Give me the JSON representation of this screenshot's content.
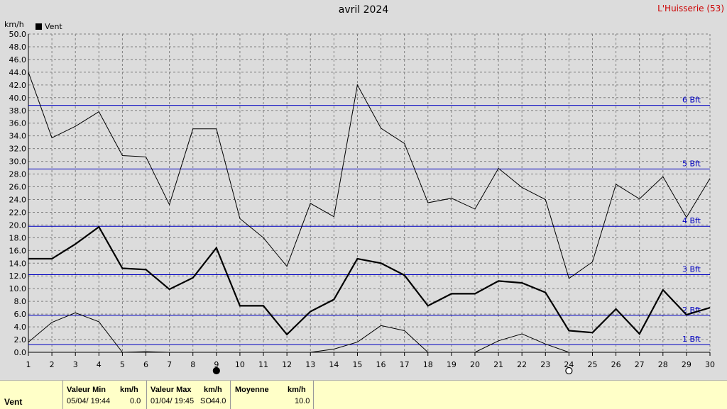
{
  "header": {
    "title": "avril 2024",
    "station": "L'Huisserie (53)",
    "unit": "km/h",
    "legend_label": "Vent"
  },
  "chart_data": {
    "type": "line",
    "title": "avril 2024",
    "ylabel": "km/h",
    "x": [
      1,
      2,
      3,
      4,
      5,
      6,
      7,
      8,
      9,
      10,
      11,
      12,
      13,
      14,
      15,
      16,
      17,
      18,
      19,
      20,
      21,
      22,
      23,
      24,
      25,
      26,
      27,
      28,
      29,
      30
    ],
    "xlim": [
      1,
      30
    ],
    "ylim": [
      0,
      50
    ],
    "y_ticks": [
      "0.0",
      "2.0",
      "4.0",
      "6.0",
      "8.0",
      "10.0",
      "12.0",
      "14.0",
      "16.0",
      "18.0",
      "20.0",
      "22.0",
      "24.0",
      "26.0",
      "28.0",
      "30.0",
      "32.0",
      "34.0",
      "36.0",
      "38.0",
      "40.0",
      "42.0",
      "44.0",
      "46.0",
      "48.0",
      "50.0"
    ],
    "grid": true,
    "legend": "top-left",
    "series": [
      {
        "name": "Vent",
        "role": "mean",
        "values": [
          14.7,
          14.7,
          17.0,
          19.7,
          13.2,
          13.0,
          9.9,
          11.7,
          16.4,
          7.3,
          7.3,
          2.8,
          6.4,
          8.3,
          14.7,
          14.0,
          12.1,
          7.3,
          9.2,
          9.2,
          11.2,
          10.9,
          9.4,
          3.4,
          3.1,
          6.8,
          2.9,
          9.8,
          5.9,
          7.0
        ]
      },
      {
        "role": "max",
        "values": [
          44.0,
          33.7,
          35.5,
          37.8,
          30.9,
          30.7,
          23.2,
          35.1,
          35.1,
          21.0,
          18.0,
          13.5,
          23.4,
          21.3,
          42.0,
          35.2,
          32.8,
          23.5,
          24.2,
          22.5,
          28.9,
          25.9,
          24.0,
          11.6,
          14.2,
          26.4,
          24.1,
          27.6,
          21.2,
          27.3
        ]
      },
      {
        "role": "min",
        "values": [
          1.6,
          4.7,
          6.2,
          4.8,
          0.0,
          0.1,
          0.0,
          null,
          null,
          null,
          null,
          null,
          0.0,
          0.5,
          1.6,
          4.2,
          3.4,
          0.0,
          null,
          0.0,
          1.8,
          2.9,
          1.3,
          0.0,
          null,
          null,
          null,
          null,
          null,
          null
        ]
      }
    ],
    "reference_lines": [
      {
        "value": 1.2,
        "label": "1 Bft"
      },
      {
        "value": 5.8,
        "label": "2 Bft"
      },
      {
        "value": 12.2,
        "label": "3 Bft"
      },
      {
        "value": 19.8,
        "label": "4 Bft"
      },
      {
        "value": 28.8,
        "label": "5 Bft"
      },
      {
        "value": 38.8,
        "label": "6 Bft"
      }
    ],
    "markers": [
      {
        "x": 9,
        "symbol": "filled-circle"
      },
      {
        "x": 24,
        "symbol": "open-circle"
      }
    ],
    "colors": {
      "grid": "#808080",
      "reference": "#0000c0",
      "series": "#000000",
      "background": "#dcdcdc"
    }
  },
  "footer": {
    "label": "Vent",
    "min": {
      "header": "Valeur Min",
      "unit": "km/h",
      "date": "05/04/  19:44",
      "value": "0.0"
    },
    "max": {
      "header": "Valeur Max",
      "unit": "km/h",
      "date": "01/04/  19:45",
      "dir": "SO",
      "value": "44.0"
    },
    "mean": {
      "header": "Moyenne",
      "unit": "km/h",
      "value": "10.0"
    },
    "colors": {
      "background": "#ffffc8"
    }
  }
}
